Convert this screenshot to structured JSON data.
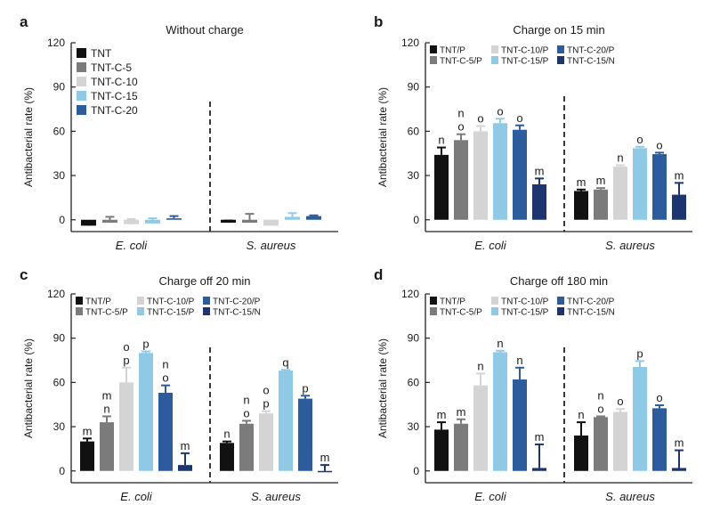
{
  "colors": {
    "TNT": "#111111",
    "TNT-C-5": "#7b7b7b",
    "TNT-C-10": "#d4d4d4",
    "TNT-C-15": "#8ecae6",
    "TNT-C-20": "#2d5c9e",
    "TNT-C-15/N": "#1c3470",
    "divider": "#222222"
  },
  "chart_data": [
    {
      "type": "bar",
      "panel": "a",
      "title": "Without charge",
      "ylabel": "Antibacterial rate (%)",
      "ylim": [
        -8,
        120
      ],
      "yticks": [
        0,
        30,
        60,
        90,
        120
      ],
      "groups": [
        "E. coli",
        "S. aureus"
      ],
      "legend": {
        "position": "top-left",
        "columns": 1
      },
      "series": [
        {
          "name": "TNT",
          "color_key": "TNT",
          "values": [
            -4,
            -2
          ],
          "errors": [
            2,
            1.5
          ],
          "labels": [
            "",
            ""
          ]
        },
        {
          "name": "TNT-C-5",
          "color_key": "TNT-C-5",
          "values": [
            -2,
            -2
          ],
          "errors": [
            4,
            6
          ],
          "labels": [
            "",
            ""
          ]
        },
        {
          "name": "TNT-C-10",
          "color_key": "TNT-C-10",
          "values": [
            -3,
            -4
          ],
          "errors": [
            3.5,
            1.5
          ],
          "labels": [
            "",
            ""
          ]
        },
        {
          "name": "TNT-C-15",
          "color_key": "TNT-C-15",
          "values": [
            -2.5,
            2
          ],
          "errors": [
            3.5,
            2.5
          ],
          "labels": [
            "",
            ""
          ]
        },
        {
          "name": "TNT-C-20",
          "color_key": "TNT-C-20",
          "values": [
            1,
            2.5
          ],
          "errors": [
            1.5,
            0.5
          ],
          "labels": [
            "",
            ""
          ]
        }
      ]
    },
    {
      "type": "bar",
      "panel": "b",
      "title": "Charge on 15 min",
      "ylabel": "Antibacterial rate (%)",
      "ylim": [
        -8,
        120
      ],
      "yticks": [
        0,
        30,
        60,
        90,
        120
      ],
      "groups": [
        "E. coli",
        "S. aureus"
      ],
      "legend": {
        "position": "top",
        "columns": 3
      },
      "series": [
        {
          "name": "TNT/P",
          "color_key": "TNT",
          "values": [
            44,
            19.5
          ],
          "errors": [
            5,
            1
          ],
          "labels": [
            "n",
            "m"
          ]
        },
        {
          "name": "TNT-C-5/P",
          "color_key": "TNT-C-5",
          "values": [
            54,
            20.5
          ],
          "errors": [
            4,
            1
          ],
          "labels": [
            "n\no",
            "m"
          ]
        },
        {
          "name": "TNT-C-10/P",
          "color_key": "TNT-C-10",
          "values": [
            60,
            36
          ],
          "errors": [
            3.5,
            1
          ],
          "labels": [
            "o",
            "n"
          ]
        },
        {
          "name": "TNT-C-15/P",
          "color_key": "TNT-C-15",
          "values": [
            65.5,
            48.5
          ],
          "errors": [
            3,
            1
          ],
          "labels": [
            "o",
            "o"
          ]
        },
        {
          "name": "TNT-C-20/P",
          "color_key": "TNT-C-20",
          "values": [
            61,
            44.5
          ],
          "errors": [
            3,
            1
          ],
          "labels": [
            "o",
            "o"
          ]
        },
        {
          "name": "TNT-C-15/N",
          "color_key": "TNT-C-15/N",
          "values": [
            24,
            17
          ],
          "errors": [
            4,
            8
          ],
          "labels": [
            "m",
            "m"
          ]
        }
      ]
    },
    {
      "type": "bar",
      "panel": "c",
      "title": "Charge off 20 min",
      "ylabel": "Antibacterial rate (%)",
      "ylim": [
        -8,
        120
      ],
      "yticks": [
        0,
        30,
        60,
        90,
        120
      ],
      "groups": [
        "E. coli",
        "S. aureus"
      ],
      "legend": {
        "position": "top",
        "columns": 3
      },
      "series": [
        {
          "name": "TNT/P",
          "color_key": "TNT",
          "values": [
            20,
            19
          ],
          "errors": [
            2,
            1
          ],
          "labels": [
            "m",
            "n"
          ]
        },
        {
          "name": "TNT-C-5/P",
          "color_key": "TNT-C-5",
          "values": [
            33,
            32
          ],
          "errors": [
            4,
            2
          ],
          "labels": [
            "m\nn",
            "n\no"
          ]
        },
        {
          "name": "TNT-C-10/P",
          "color_key": "TNT-C-10",
          "values": [
            60,
            39
          ],
          "errors": [
            10,
            1.5
          ],
          "labels": [
            "o\np",
            "o\np"
          ]
        },
        {
          "name": "TNT-C-15/P",
          "color_key": "TNT-C-15",
          "values": [
            80,
            68
          ],
          "errors": [
            1,
            0.5
          ],
          "labels": [
            "p",
            "q"
          ]
        },
        {
          "name": "TNT-C-20/P",
          "color_key": "TNT-C-20",
          "values": [
            53,
            49
          ],
          "errors": [
            5,
            2
          ],
          "labels": [
            "n\no",
            "p"
          ]
        },
        {
          "name": "TNT-C-15/N",
          "color_key": "TNT-C-15/N",
          "values": [
            4,
            0
          ],
          "errors": [
            8,
            4
          ],
          "labels": [
            "m",
            "m"
          ]
        }
      ]
    },
    {
      "type": "bar",
      "panel": "d",
      "title": "Charge off 180 min",
      "ylabel": "Antibacterial rate (%)",
      "ylim": [
        -8,
        120
      ],
      "yticks": [
        0,
        30,
        60,
        90,
        120
      ],
      "groups": [
        "E. coli",
        "S. aureus"
      ],
      "legend": {
        "position": "top",
        "columns": 3
      },
      "series": [
        {
          "name": "TNT/P",
          "color_key": "TNT",
          "values": [
            28,
            24
          ],
          "errors": [
            5,
            9
          ],
          "labels": [
            "m",
            "n"
          ]
        },
        {
          "name": "TNT-C-5/P",
          "color_key": "TNT-C-5",
          "values": [
            32,
            36.5
          ],
          "errors": [
            3,
            0.5
          ],
          "labels": [
            "m",
            "n\no"
          ]
        },
        {
          "name": "TNT-C-10/P",
          "color_key": "TNT-C-10",
          "values": [
            58,
            40
          ],
          "errors": [
            8,
            2
          ],
          "labels": [
            "n",
            "o"
          ]
        },
        {
          "name": "TNT-C-15/P",
          "color_key": "TNT-C-15",
          "values": [
            80.5,
            70.5
          ],
          "errors": [
            1,
            4
          ],
          "labels": [
            "n",
            "p"
          ]
        },
        {
          "name": "TNT-C-20/P",
          "color_key": "TNT-C-20",
          "values": [
            62,
            42.5
          ],
          "errors": [
            8,
            2
          ],
          "labels": [
            "n",
            "o"
          ]
        },
        {
          "name": "TNT-C-15/N",
          "color_key": "TNT-C-15/N",
          "values": [
            2,
            2
          ],
          "errors": [
            16,
            12
          ],
          "labels": [
            "m",
            "m"
          ]
        }
      ]
    }
  ]
}
